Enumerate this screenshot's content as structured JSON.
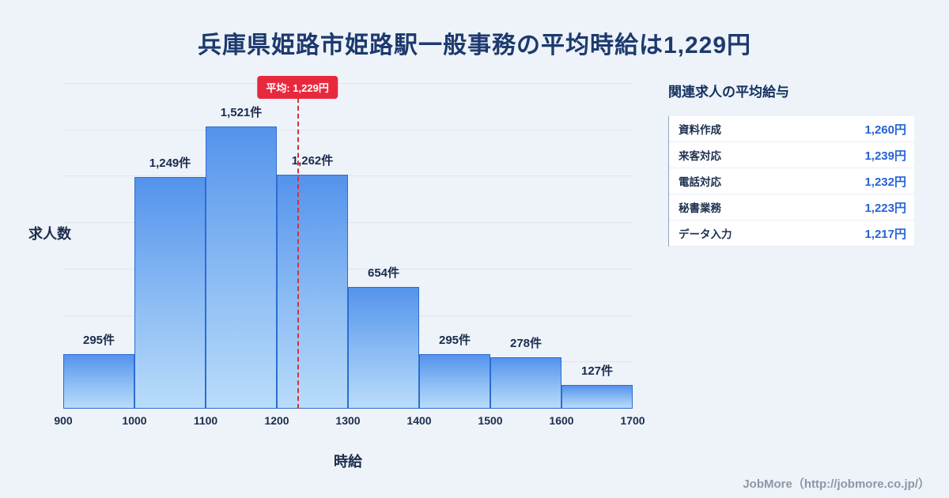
{
  "page": {
    "title": "兵庫県姫路市姫路駅一般事務の平均時給は1,229円",
    "footer": "JobMore（http://jobmore.co.jp/）"
  },
  "chart_data": {
    "type": "bar",
    "title": "兵庫県姫路市姫路駅一般事務の平均時給は1,229円",
    "xlabel": "時給",
    "ylabel": "求人数",
    "bin_edges": [
      900,
      1000,
      1100,
      1200,
      1300,
      1400,
      1500,
      1600,
      1700
    ],
    "values": [
      295,
      1249,
      1521,
      1262,
      654,
      295,
      278,
      127
    ],
    "bar_labels": [
      "295件",
      "1,249件",
      "1,521件",
      "1,262件",
      "654件",
      "295件",
      "278件",
      "127件"
    ],
    "average": 1229,
    "average_label": "平均: 1,229円",
    "ylim": [
      0,
      1750
    ],
    "grid": true,
    "legend": "none",
    "colors": {
      "bar_top": "#5493ec",
      "bar_bottom": "#b9dcfa",
      "bar_border": "#2d6cd0",
      "average_line": "#d5303e",
      "average_badge_bg": "#e8293d",
      "title_text": "#1d3a6e",
      "value_accent": "#2563d4"
    }
  },
  "side_panel": {
    "title": "関連求人の平均給与",
    "rows": [
      {
        "label": "資料作成",
        "value": "1,260円"
      },
      {
        "label": "来客対応",
        "value": "1,239円"
      },
      {
        "label": "電話対応",
        "value": "1,232円"
      },
      {
        "label": "秘書業務",
        "value": "1,223円"
      },
      {
        "label": "データ入力",
        "value": "1,217円"
      }
    ]
  }
}
